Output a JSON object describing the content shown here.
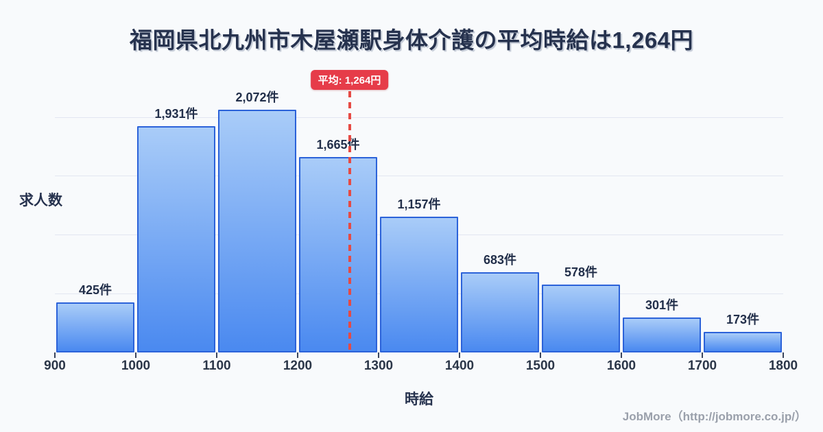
{
  "title": {
    "text": "福岡県北九州市木屋瀬駅身体介護の平均時給は1,264円"
  },
  "chart_data": {
    "type": "bar",
    "subtype": "histogram",
    "title": "福岡県北九州市木屋瀬駅身体介護の平均時給は1,264円",
    "xlabel": "時給",
    "ylabel": "求人数",
    "bin_edges": [
      900,
      1000,
      1100,
      1200,
      1300,
      1400,
      1500,
      1600,
      1700,
      1800
    ],
    "x_tick_labels": [
      "900",
      "1000",
      "1100",
      "1200",
      "1300",
      "1400",
      "1500",
      "1600",
      "1700",
      "1800"
    ],
    "values": [
      425,
      1931,
      2072,
      1665,
      1157,
      683,
      578,
      301,
      173
    ],
    "value_labels": [
      "425件",
      "1,931件",
      "2,072件",
      "1,665件",
      "1,157件",
      "683件",
      "578件",
      "301件",
      "173件"
    ],
    "average": 1264,
    "average_label": "平均: 1,264円",
    "ylim": [
      0,
      2450
    ],
    "xlim": [
      900,
      1800
    ],
    "grid": true,
    "gridline_interval": 500,
    "legend": "none",
    "colors": {
      "background": "#f8fafc",
      "bar_fill_top": "#a9ccf8",
      "bar_fill_bottom": "#4a89f0",
      "bar_border": "#2b62d9",
      "gridline": "#e2e6f1",
      "average_line": "#e64a44",
      "average_badge_bg": "#e63c49",
      "average_badge_text": "#ffffff",
      "text_dark": "#26324e",
      "tick_text": "#2b3648",
      "footer_text": "#9aa0ab"
    }
  },
  "footer": {
    "credit": "JobMore（http://jobmore.co.jp/）"
  }
}
